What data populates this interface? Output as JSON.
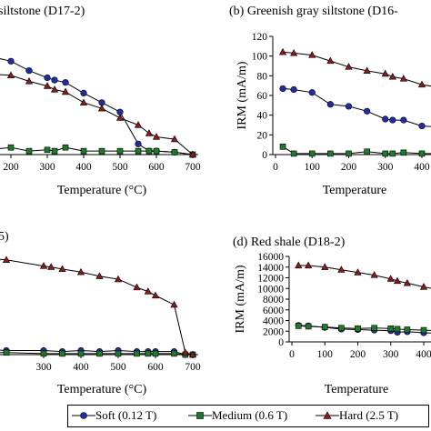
{
  "colors": {
    "soft": "#1f2ea8",
    "medium": "#1e7a2a",
    "hard": "#8b1a1a"
  },
  "legend": [
    {
      "label": "Soft (0.12 T)",
      "marker": "circle",
      "color_key": "soft"
    },
    {
      "label": "Medium (0.6 T)",
      "marker": "square",
      "color_key": "medium"
    },
    {
      "label": "Hard (2.5 T)",
      "marker": "triangle",
      "color_key": "hard"
    }
  ],
  "chart_data": [
    {
      "type": "line",
      "title": "siltstone (D17-2)",
      "xlabel": "Temperature (°C)",
      "xticks": [
        200,
        300,
        400,
        500,
        600,
        700
      ],
      "series": [
        {
          "name": "Soft (0.12 T)",
          "x": [
            100,
            200,
            250,
            300,
            320,
            350,
            400,
            450,
            500,
            550,
            580,
            600,
            650,
            700
          ],
          "y": [
            0.86,
            0.79,
            0.71,
            0.65,
            0.63,
            0.61,
            0.52,
            0.44,
            0.36,
            0.09,
            0.03,
            0.03,
            0.02,
            0.0
          ]
        },
        {
          "name": "Medium (0.6 T)",
          "x": [
            100,
            200,
            250,
            300,
            320,
            350,
            400,
            450,
            500,
            550,
            580,
            600,
            650,
            700
          ],
          "y": [
            0.03,
            0.06,
            0.03,
            0.04,
            0.03,
            0.06,
            0.03,
            0.03,
            0.03,
            0.03,
            0.03,
            0.03,
            0.02,
            0.0
          ]
        },
        {
          "name": "Hard (2.5 T)",
          "x": [
            100,
            200,
            250,
            300,
            320,
            350,
            400,
            450,
            500,
            550,
            580,
            600,
            650,
            700
          ],
          "y": [
            0.69,
            0.67,
            0.62,
            0.58,
            0.55,
            0.53,
            0.44,
            0.39,
            0.31,
            0.25,
            0.18,
            0.15,
            0.13,
            0.0
          ]
        }
      ]
    },
    {
      "type": "line",
      "title": "(b) Greenish gray siltstone (D16-",
      "xlabel": "Temperature",
      "ylabel": "IRM (mA/m)",
      "ylim": [
        0,
        120
      ],
      "yticks": [
        0,
        20,
        40,
        60,
        80,
        100,
        120
      ],
      "xticks": [
        0,
        100,
        200,
        300,
        400
      ],
      "series": [
        {
          "name": "Soft (0.12 T)",
          "x": [
            20,
            50,
            100,
            150,
            200,
            250,
            300,
            320,
            350,
            400,
            450
          ],
          "y": [
            67,
            66,
            63,
            51,
            49,
            44,
            36,
            35,
            35,
            29,
            28
          ]
        },
        {
          "name": "Medium (0.6 T)",
          "x": [
            20,
            50,
            100,
            150,
            200,
            250,
            300,
            320,
            350,
            400,
            450
          ],
          "y": [
            8,
            1,
            1,
            1,
            1,
            3,
            1,
            1,
            2,
            1,
            1
          ]
        },
        {
          "name": "Hard (2.5 T)",
          "x": [
            20,
            50,
            100,
            150,
            200,
            250,
            300,
            320,
            350,
            400,
            450
          ],
          "y": [
            104,
            103,
            101,
            95,
            89,
            85,
            82,
            79,
            77,
            71,
            68
          ]
        }
      ]
    },
    {
      "type": "line",
      "title": "5)",
      "xlabel": "Temperature (°C)",
      "xticks": [
        300,
        400,
        500,
        600,
        700
      ],
      "series": [
        {
          "name": "Soft (0.12 T)",
          "x": [
            100,
            200,
            300,
            350,
            400,
            450,
            500,
            550,
            580,
            600,
            650,
            680,
            700
          ],
          "y": [
            0.06,
            0.04,
            0.04,
            0.03,
            0.04,
            0.03,
            0.04,
            0.03,
            0.03,
            0.03,
            0.03,
            0.0,
            0.0
          ]
        },
        {
          "name": "Medium (0.6 T)",
          "x": [
            100,
            200,
            300,
            350,
            400,
            450,
            500,
            550,
            580,
            600,
            650,
            680,
            700
          ],
          "y": [
            0.02,
            0.02,
            0.01,
            0.01,
            0.01,
            0.01,
            0.01,
            0.01,
            0.01,
            0.01,
            0.01,
            0.0,
            0.0
          ]
        },
        {
          "name": "Hard (2.5 T)",
          "x": [
            100,
            200,
            300,
            320,
            350,
            400,
            450,
            500,
            550,
            580,
            600,
            650,
            680,
            700
          ],
          "y": [
            0.96,
            0.93,
            0.87,
            0.86,
            0.84,
            0.81,
            0.77,
            0.74,
            0.66,
            0.62,
            0.58,
            0.49,
            0.02,
            0.0
          ]
        }
      ]
    },
    {
      "type": "line",
      "title": "(d) Red shale (D18-2)",
      "xlabel": "Temperature",
      "ylabel": "IRM (mA/m)",
      "ylim": [
        0,
        16000
      ],
      "yticks": [
        0,
        2000,
        4000,
        6000,
        8000,
        10000,
        12000,
        14000,
        16000
      ],
      "xticks": [
        0,
        100,
        200,
        300,
        400
      ],
      "series": [
        {
          "name": "Soft (0.12 T)",
          "x": [
            20,
            50,
            100,
            150,
            200,
            250,
            300,
            320,
            350,
            400,
            450
          ],
          "y": [
            3100,
            3000,
            2700,
            2400,
            2300,
            2200,
            2100,
            1800,
            1900,
            1700,
            1600
          ]
        },
        {
          "name": "Medium (0.6 T)",
          "x": [
            20,
            50,
            100,
            150,
            200,
            250,
            300,
            320,
            350,
            400,
            450
          ],
          "y": [
            3000,
            2900,
            2800,
            2600,
            2500,
            2600,
            2500,
            2400,
            2300,
            2200,
            2100
          ]
        },
        {
          "name": "Hard (2.5 T)",
          "x": [
            20,
            50,
            100,
            150,
            200,
            250,
            300,
            320,
            350,
            400,
            450
          ],
          "y": [
            14300,
            14300,
            14000,
            13500,
            13000,
            12500,
            11800,
            11400,
            11000,
            10300,
            9700
          ]
        }
      ]
    }
  ]
}
